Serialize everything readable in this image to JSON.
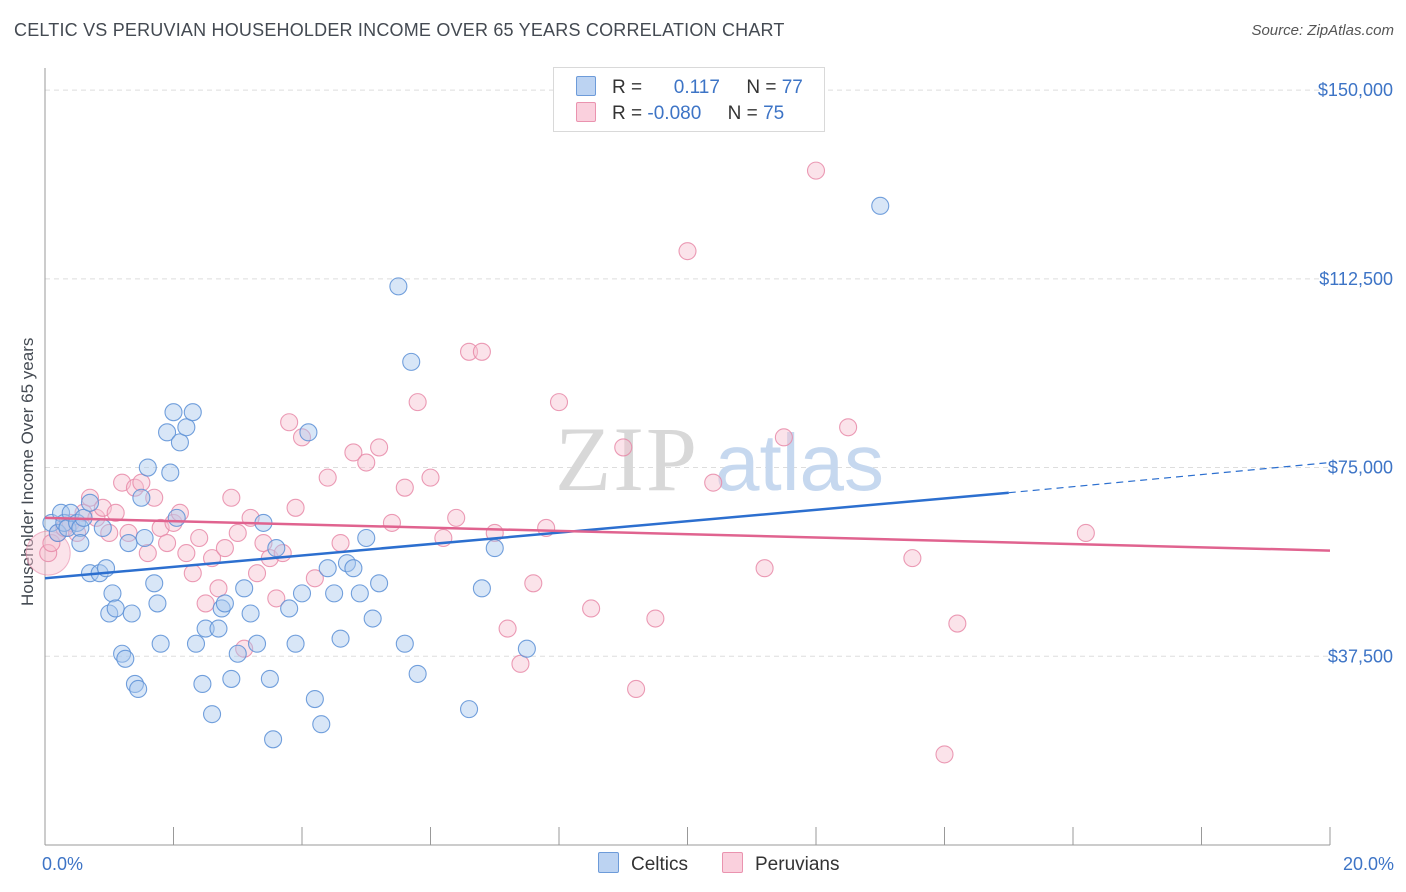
{
  "title": "CELTIC VS PERUVIAN HOUSEHOLDER INCOME OVER 65 YEARS CORRELATION CHART",
  "source": "Source: ZipAtlas.com",
  "watermark": {
    "zip": "ZIP",
    "atlas": "atlas"
  },
  "legend": {
    "rows": [
      {
        "r_label": "R =",
        "r_value": "0.117",
        "n_label": "N =",
        "n_value": "77",
        "color": "#a9c7ee"
      },
      {
        "r_label": "R =",
        "r_value": "-0.080",
        "n_label": "N =",
        "n_value": "75",
        "color": "#f5b6c9"
      }
    ]
  },
  "bottom_legend": [
    {
      "label": "Celtics",
      "color": "#a9c7ee"
    },
    {
      "label": "Peruvians",
      "color": "#f5b6c9"
    }
  ],
  "colors": {
    "celtics_fill": "#a9c7ee",
    "celtics_stroke": "#5a8fd6",
    "celtics_line": "#2c6fcf",
    "peruvians_fill": "#f7c0d1",
    "peruvians_stroke": "#e88aa8",
    "peruvians_line": "#e0638f",
    "axis_text": "#3d74c6",
    "grid": "#dddddd"
  },
  "chart_data": {
    "type": "scatter",
    "title": "CELTIC VS PERUVIAN HOUSEHOLDER INCOME OVER 65 YEARS CORRELATION CHART",
    "xlabel": "",
    "ylabel": "Householder Income Over 65 years",
    "xlim": [
      0,
      20
    ],
    "ylim": [
      0,
      153000
    ],
    "x_tick_labels": [
      "0.0%",
      "20.0%"
    ],
    "y_ticks": [
      37500,
      75000,
      112500,
      150000
    ],
    "y_tick_labels": [
      "$37,500",
      "$75,000",
      "$112,500",
      "$150,000"
    ],
    "grid": true,
    "legend_position": "top-center",
    "series": [
      {
        "name": "Celtics",
        "points": [
          [
            0.1,
            64000
          ],
          [
            0.2,
            62000
          ],
          [
            0.25,
            66000
          ],
          [
            0.3,
            64000
          ],
          [
            0.35,
            63000
          ],
          [
            0.4,
            66000
          ],
          [
            0.5,
            64000
          ],
          [
            0.55,
            63000
          ],
          [
            0.6,
            65000
          ],
          [
            0.7,
            68000
          ],
          [
            0.55,
            60000
          ],
          [
            0.7,
            54000
          ],
          [
            0.85,
            54000
          ],
          [
            0.9,
            63000
          ],
          [
            0.95,
            55000
          ],
          [
            1.0,
            46000
          ],
          [
            1.05,
            50000
          ],
          [
            1.1,
            47000
          ],
          [
            1.2,
            38000
          ],
          [
            1.25,
            37000
          ],
          [
            1.3,
            60000
          ],
          [
            1.35,
            46000
          ],
          [
            1.4,
            32000
          ],
          [
            1.45,
            31000
          ],
          [
            1.5,
            69000
          ],
          [
            1.55,
            61000
          ],
          [
            1.6,
            75000
          ],
          [
            1.7,
            52000
          ],
          [
            1.75,
            48000
          ],
          [
            1.8,
            40000
          ],
          [
            1.9,
            82000
          ],
          [
            1.95,
            74000
          ],
          [
            2.0,
            86000
          ],
          [
            2.05,
            65000
          ],
          [
            2.1,
            80000
          ],
          [
            2.2,
            83000
          ],
          [
            2.3,
            86000
          ],
          [
            2.35,
            40000
          ],
          [
            2.45,
            32000
          ],
          [
            2.5,
            43000
          ],
          [
            2.6,
            26000
          ],
          [
            2.7,
            43000
          ],
          [
            2.75,
            47000
          ],
          [
            2.8,
            48000
          ],
          [
            2.9,
            33000
          ],
          [
            3.0,
            38000
          ],
          [
            3.1,
            51000
          ],
          [
            3.2,
            46000
          ],
          [
            3.3,
            40000
          ],
          [
            3.4,
            64000
          ],
          [
            3.5,
            33000
          ],
          [
            3.55,
            21000
          ],
          [
            3.6,
            59000
          ],
          [
            3.8,
            47000
          ],
          [
            3.9,
            40000
          ],
          [
            4.0,
            50000
          ],
          [
            4.1,
            82000
          ],
          [
            4.2,
            29000
          ],
          [
            4.3,
            24000
          ],
          [
            4.4,
            55000
          ],
          [
            4.5,
            50000
          ],
          [
            4.6,
            41000
          ],
          [
            4.7,
            56000
          ],
          [
            4.8,
            55000
          ],
          [
            4.9,
            50000
          ],
          [
            5.0,
            61000
          ],
          [
            5.1,
            45000
          ],
          [
            5.2,
            52000
          ],
          [
            5.5,
            111000
          ],
          [
            5.6,
            40000
          ],
          [
            5.7,
            96000
          ],
          [
            5.8,
            34000
          ],
          [
            6.6,
            27000
          ],
          [
            6.8,
            51000
          ],
          [
            7.0,
            59000
          ],
          [
            13.0,
            127000
          ],
          [
            7.5,
            39000
          ]
        ]
      },
      {
        "name": "Peruvians",
        "points": [
          [
            0.05,
            58000
          ],
          [
            0.1,
            60000
          ],
          [
            0.2,
            62000
          ],
          [
            0.3,
            63000
          ],
          [
            0.4,
            64000
          ],
          [
            0.5,
            62000
          ],
          [
            0.6,
            66000
          ],
          [
            0.7,
            69000
          ],
          [
            0.8,
            65000
          ],
          [
            0.9,
            67000
          ],
          [
            1.0,
            62000
          ],
          [
            1.1,
            66000
          ],
          [
            1.2,
            72000
          ],
          [
            1.3,
            62000
          ],
          [
            1.4,
            71000
          ],
          [
            1.5,
            72000
          ],
          [
            1.6,
            58000
          ],
          [
            1.7,
            69000
          ],
          [
            1.8,
            63000
          ],
          [
            1.9,
            60000
          ],
          [
            2.0,
            64000
          ],
          [
            2.1,
            66000
          ],
          [
            2.2,
            58000
          ],
          [
            2.3,
            54000
          ],
          [
            2.4,
            61000
          ],
          [
            2.5,
            48000
          ],
          [
            2.6,
            57000
          ],
          [
            2.7,
            51000
          ],
          [
            2.8,
            59000
          ],
          [
            2.9,
            69000
          ],
          [
            3.0,
            62000
          ],
          [
            3.1,
            39000
          ],
          [
            3.2,
            65000
          ],
          [
            3.3,
            54000
          ],
          [
            3.4,
            60000
          ],
          [
            3.5,
            57000
          ],
          [
            3.6,
            49000
          ],
          [
            3.7,
            58000
          ],
          [
            3.8,
            84000
          ],
          [
            3.9,
            67000
          ],
          [
            4.0,
            81000
          ],
          [
            4.2,
            53000
          ],
          [
            4.4,
            73000
          ],
          [
            4.6,
            60000
          ],
          [
            4.8,
            78000
          ],
          [
            5.0,
            76000
          ],
          [
            5.2,
            79000
          ],
          [
            5.4,
            64000
          ],
          [
            5.6,
            71000
          ],
          [
            5.8,
            88000
          ],
          [
            6.0,
            73000
          ],
          [
            6.2,
            61000
          ],
          [
            6.4,
            65000
          ],
          [
            6.6,
            98000
          ],
          [
            6.8,
            98000
          ],
          [
            7.0,
            62000
          ],
          [
            7.2,
            43000
          ],
          [
            7.4,
            36000
          ],
          [
            7.6,
            52000
          ],
          [
            7.8,
            63000
          ],
          [
            8.0,
            88000
          ],
          [
            8.5,
            47000
          ],
          [
            9.0,
            79000
          ],
          [
            9.2,
            31000
          ],
          [
            9.5,
            45000
          ],
          [
            10.0,
            118000
          ],
          [
            10.4,
            72000
          ],
          [
            11.2,
            55000
          ],
          [
            11.5,
            81000
          ],
          [
            12.0,
            134000
          ],
          [
            12.5,
            83000
          ],
          [
            13.5,
            57000
          ],
          [
            14.2,
            44000
          ],
          [
            16.2,
            62000
          ],
          [
            14.0,
            18000
          ]
        ]
      }
    ],
    "trend_lines": [
      {
        "series": "Celtics",
        "x": [
          0,
          15.0
        ],
        "y": [
          53000,
          70000
        ],
        "dashed_extension": [
          15.0,
          20.0
        ],
        "dashed_y": [
          70000,
          76000
        ]
      },
      {
        "series": "Peruvians",
        "x": [
          0,
          20.0
        ],
        "y": [
          65000,
          58500
        ]
      }
    ]
  }
}
